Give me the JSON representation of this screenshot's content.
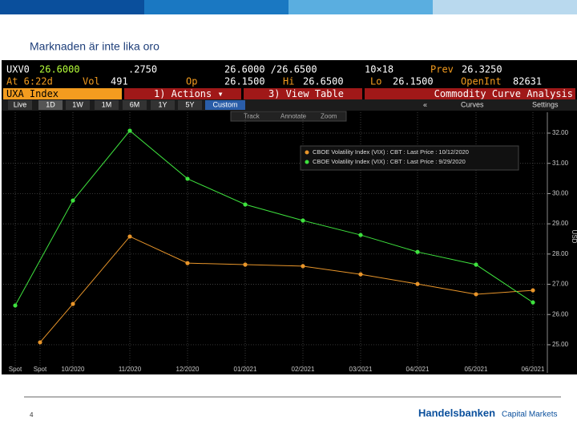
{
  "slide": {
    "title": "Marknaden är inte lika oro",
    "page_number": "4",
    "logo": {
      "brand": "Handelsbanken",
      "suffix": "Capital Markets"
    }
  },
  "terminal": {
    "ticker": "UXV0",
    "last": "26.6000",
    "change": ".2750",
    "bid_ask": "26.6000 /26.6500",
    "size": "10×18",
    "prev_label": "Prev",
    "prev": "26.3250",
    "time": "At 6:22d",
    "vol_label": "Vol",
    "vol": "491",
    "open_label": "Op",
    "open": "26.1500",
    "high_label": "Hi",
    "high": "26.6500",
    "low_label": "Lo",
    "low": "26.1500",
    "oi_label": "OpenInt",
    "oi": "82631",
    "security": "UXA Index",
    "actions": "1) Actions ▾",
    "view_table": "3) View Table",
    "function": "Commodity Curve Analysis",
    "tabs": [
      "Live",
      "1D",
      "1W",
      "1M",
      "6M",
      "1Y",
      "5Y",
      "Custom"
    ],
    "collapse": "«",
    "curves": "Curves",
    "settings": "Settings",
    "tools": [
      "Track",
      "Annotate",
      "Zoom"
    ]
  },
  "chart_data": {
    "type": "line",
    "y_axis_label": "USD",
    "categories": [
      "Spot",
      "Spot",
      "10/2020",
      "11/2020",
      "12/2020",
      "01/2021",
      "02/2021",
      "03/2021",
      "04/2021",
      "05/2021",
      "06/2021"
    ],
    "series": [
      {
        "name": "CBOE Volatility Index (VIX) : CBT : Last Price : 10/12/2020",
        "color": "#e8952a",
        "x": [
          "Spot",
          "10/2020",
          "11/2020",
          "12/2020",
          "01/2021",
          "02/2021",
          "03/2021",
          "04/2021",
          "05/2021",
          "06/2021"
        ],
        "values": [
          25.08,
          26.35,
          28.58,
          27.7,
          27.65,
          27.6,
          27.33,
          27.01,
          26.67,
          26.8
        ]
      },
      {
        "name": "CBOE Volatility Index (VIX) : CBT : Last Price : 9/29/2020",
        "color": "#3ee23e",
        "x": [
          "Spot",
          "10/2020",
          "11/2020",
          "12/2020",
          "01/2021",
          "02/2021",
          "03/2021",
          "04/2021",
          "05/2021",
          "06/2021"
        ],
        "values": [
          26.3,
          29.77,
          32.08,
          30.49,
          29.64,
          29.11,
          28.63,
          28.07,
          27.65,
          26.4
        ]
      }
    ],
    "ylim": [
      24.07,
      32.69
    ],
    "yticks": [
      {
        "value": 25,
        "label": "25.00"
      },
      {
        "value": 26,
        "label": "26.00"
      },
      {
        "value": 27,
        "label": "27.00"
      },
      {
        "value": 28,
        "label": "28.00"
      },
      {
        "value": 29,
        "label": "29.00"
      },
      {
        "value": 30,
        "label": "30.00"
      },
      {
        "value": 31,
        "label": "31.00"
      },
      {
        "value": 32,
        "label": "32.00"
      }
    ],
    "grid": true
  }
}
